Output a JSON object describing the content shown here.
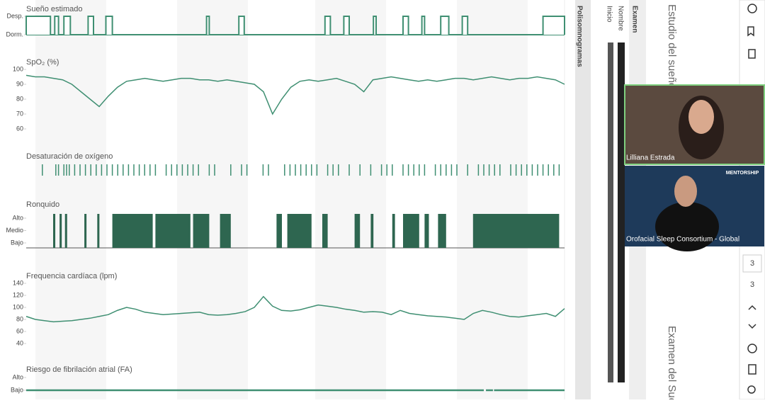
{
  "xlim": [
    0,
    100
  ],
  "panels": [
    {
      "type": "step",
      "title": "Sueño estimado",
      "ylim": [
        0,
        1
      ],
      "yticks": [
        {
          "value": 1,
          "label": "Desp."
        },
        {
          "value": 0,
          "label": "Dorm."
        }
      ],
      "intervals": [
        [
          0,
          4.5
        ],
        [
          5.3,
          6
        ],
        [
          7,
          8.2
        ],
        [
          11.5,
          12.5
        ],
        [
          14.8,
          16
        ],
        [
          33.5,
          34
        ],
        [
          39.5,
          40.5
        ],
        [
          55.5,
          56.5
        ],
        [
          59,
          60
        ],
        [
          64.5,
          65
        ],
        [
          70,
          71
        ],
        [
          73.5,
          74
        ],
        [
          77,
          78.5
        ],
        [
          81,
          82
        ],
        [
          96,
          100
        ]
      ]
    },
    {
      "type": "line",
      "title": "SpO₂ (%)",
      "ylim": [
        60,
        100
      ],
      "yticks": [
        60,
        70,
        80,
        90,
        100
      ],
      "values": [
        96,
        95,
        95,
        94,
        93,
        90,
        85,
        80,
        75,
        82,
        88,
        92,
        93,
        94,
        93,
        92,
        93,
        94,
        94,
        93,
        93,
        92,
        93,
        92,
        91,
        90,
        85,
        70,
        80,
        88,
        92,
        93,
        92,
        93,
        94,
        92,
        90,
        85,
        93,
        94,
        95,
        94,
        93,
        92,
        93,
        92,
        93,
        94,
        94,
        93,
        94,
        95,
        94,
        93,
        94,
        94,
        95,
        94,
        93,
        90
      ]
    },
    {
      "type": "events",
      "title": "Desaturación de oxígeno",
      "x": [
        3,
        5.5,
        6,
        7,
        7.5,
        8,
        9,
        10,
        11,
        12,
        13,
        14,
        15,
        16,
        17,
        18,
        19,
        20,
        21,
        22,
        23,
        24,
        26,
        27,
        28,
        29,
        30,
        31,
        32,
        34,
        35,
        38,
        40,
        41,
        44,
        45,
        48,
        49,
        50,
        51,
        52,
        53,
        54,
        56,
        57,
        58,
        60,
        62,
        64,
        66,
        67,
        68,
        70,
        71,
        72,
        73,
        74,
        76,
        77,
        78,
        79,
        80,
        82,
        84,
        85,
        86,
        87,
        88,
        90,
        91,
        92,
        93,
        94,
        95,
        96,
        97,
        98,
        99
      ]
    },
    {
      "type": "intervals",
      "title": "Ronquido",
      "ylim": [
        1,
        3
      ],
      "yticks": [
        {
          "value": 3,
          "label": "Alto"
        },
        {
          "value": 2,
          "label": "Medio"
        },
        {
          "value": 1,
          "label": "Bajo"
        }
      ],
      "intervals": [
        [
          5,
          5.4
        ],
        [
          6.2,
          6.6
        ],
        [
          7.2,
          7.6
        ],
        [
          10.8,
          11.2
        ],
        [
          13.2,
          13.6
        ],
        [
          16,
          23.5
        ],
        [
          24,
          30.5
        ],
        [
          31,
          34
        ],
        [
          36,
          38
        ],
        [
          46.5,
          47.5
        ],
        [
          48.5,
          53
        ],
        [
          55,
          56
        ],
        [
          61,
          62
        ],
        [
          64,
          64.5
        ],
        [
          68,
          68.5
        ],
        [
          70,
          73
        ],
        [
          74,
          74.8
        ],
        [
          76.5,
          78
        ],
        [
          83,
          99
        ]
      ]
    },
    {
      "type": "line",
      "title": "Frequencia cardíaca (lpm)",
      "ylim": [
        40,
        140
      ],
      "yticks": [
        40,
        60,
        80,
        100,
        120,
        140
      ],
      "values": [
        85,
        80,
        78,
        76,
        77,
        78,
        80,
        82,
        85,
        88,
        95,
        100,
        97,
        92,
        90,
        88,
        89,
        90,
        91,
        92,
        88,
        87,
        88,
        90,
        93,
        100,
        118,
        102,
        95,
        94,
        96,
        100,
        104,
        102,
        100,
        97,
        95,
        92,
        93,
        92,
        88,
        95,
        90,
        88,
        86,
        85,
        84,
        82,
        80,
        90,
        95,
        92,
        88,
        85,
        84,
        86,
        88,
        90,
        85,
        98
      ]
    },
    {
      "type": "level",
      "title": "Riesgo de fibrilación atrial (FA)",
      "ylim": [
        0,
        1
      ],
      "yticks": [
        {
          "value": 1,
          "label": "Alto"
        },
        {
          "value": 0,
          "label": "Bajo"
        }
      ],
      "intervals": [
        [
          0,
          85
        ],
        [
          85.4,
          86.7
        ],
        [
          86.9,
          100
        ]
      ]
    }
  ],
  "sidebar": {
    "tab": "Polisomnogramas",
    "header": "Examen",
    "fields": [
      "Nombre",
      "Inicio"
    ],
    "study_title": "Estudio del sueño",
    "exam_title": "Examen del Sueño"
  },
  "video": {
    "tiles": [
      "Lilliana Estrada",
      "Orofacial Sleep Consortium - Global"
    ],
    "banner": "MENTORSHIP"
  },
  "pager": [
    "3",
    "3"
  ]
}
